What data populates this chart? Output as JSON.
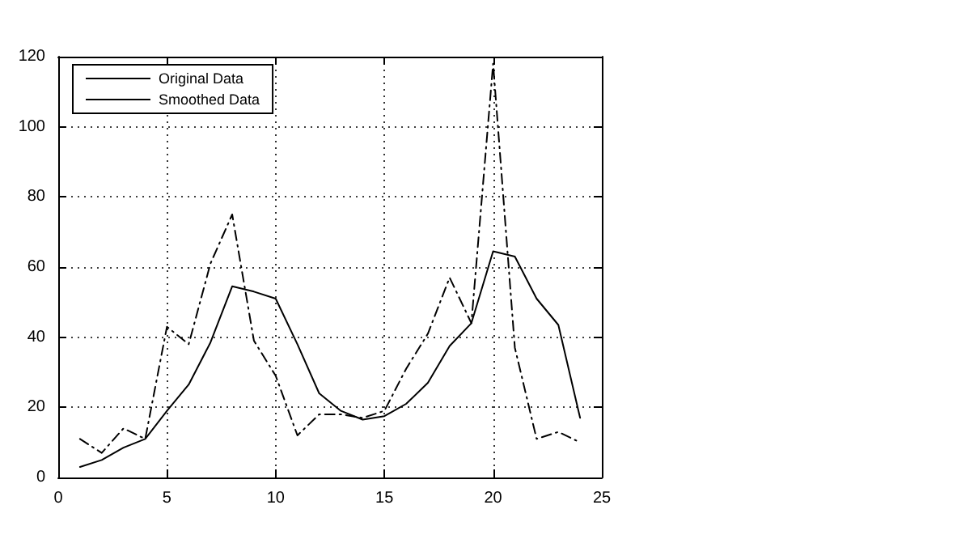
{
  "chart_data": {
    "type": "line",
    "x": [
      1,
      2,
      3,
      4,
      5,
      6,
      7,
      8,
      9,
      10,
      11,
      12,
      13,
      14,
      15,
      16,
      17,
      18,
      19,
      20,
      21,
      22,
      23,
      24
    ],
    "series": [
      {
        "name": "Original Data",
        "color": "#000000",
        "line_style": "dashed",
        "values": [
          11,
          7,
          14,
          11,
          43,
          38,
          61,
          75,
          39,
          29,
          12,
          18,
          18,
          17,
          19,
          31,
          41,
          57,
          44,
          118,
          37,
          11,
          13,
          10
        ]
      },
      {
        "name": "Smoothed Data",
        "color": "#000000",
        "line_style": "solid",
        "values": [
          3,
          5,
          8.5,
          11,
          19,
          26.5,
          38.5,
          54.5,
          53,
          51,
          38,
          24,
          19,
          16.5,
          17.5,
          21,
          27,
          37.5,
          44,
          64.5,
          63,
          51,
          43.5,
          17
        ]
      }
    ],
    "xlim": [
      0,
      25
    ],
    "xticks": [
      0,
      5,
      10,
      15,
      20,
      25
    ],
    "ylim": [
      0,
      120
    ],
    "yticks": [
      0,
      20,
      40,
      60,
      80,
      100,
      120
    ],
    "grid": true,
    "legend": "top left",
    "marker": "none"
  }
}
